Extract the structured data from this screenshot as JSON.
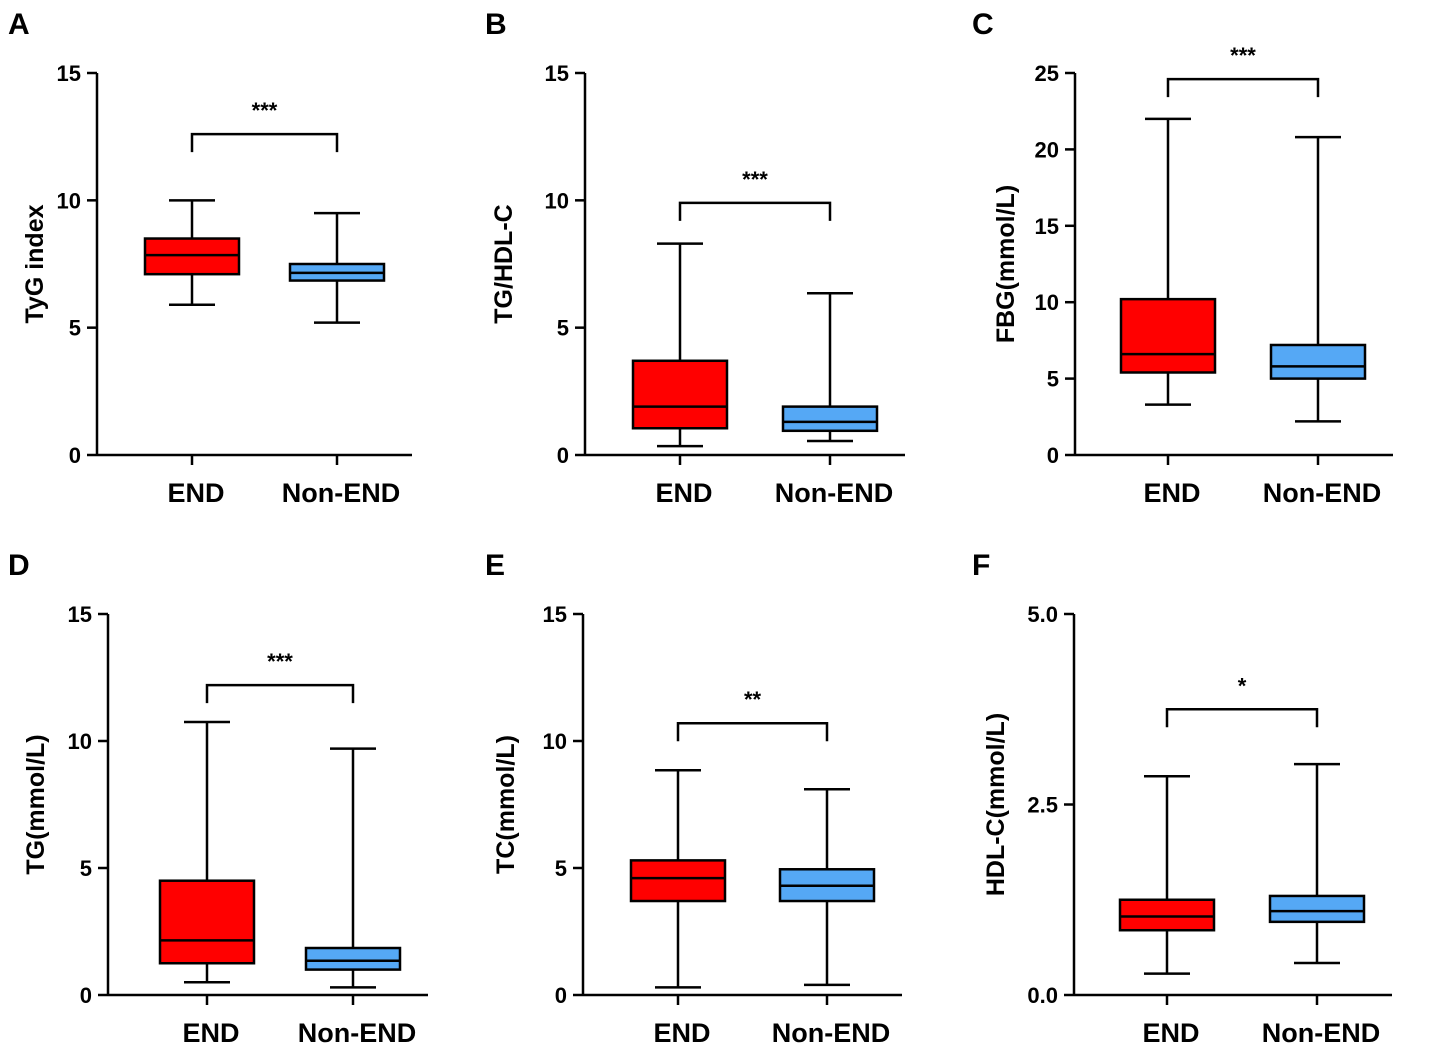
{
  "colors": {
    "END": "#ff0000",
    "Non-END": "#55a8f5"
  },
  "chart_data": [
    {
      "type": "boxplot",
      "panel": "A",
      "ylabel": "TyG index",
      "ylim": [
        0,
        15
      ],
      "yticks": [
        "0",
        "5",
        "10",
        "15"
      ],
      "ytick_values": [
        0,
        5,
        10,
        15
      ],
      "categories": [
        "END",
        "Non-END"
      ],
      "boxes": [
        {
          "name": "END",
          "min": 5.9,
          "q1": 7.1,
          "median": 7.85,
          "q3": 8.5,
          "max": 10.0
        },
        {
          "name": "Non-END",
          "min": 5.2,
          "q1": 6.85,
          "median": 7.15,
          "q3": 7.5,
          "max": 9.5
        }
      ],
      "significance": "***",
      "bracket_y": 12.6
    },
    {
      "type": "boxplot",
      "panel": "B",
      "ylabel": "TG/HDL-C",
      "ylim": [
        0,
        15
      ],
      "yticks": [
        "0",
        "5",
        "10",
        "15"
      ],
      "ytick_values": [
        0,
        5,
        10,
        15
      ],
      "categories": [
        "END",
        "Non-END"
      ],
      "boxes": [
        {
          "name": "END",
          "min": 0.35,
          "q1": 1.05,
          "median": 1.9,
          "q3": 3.7,
          "max": 8.3
        },
        {
          "name": "Non-END",
          "min": 0.55,
          "q1": 0.95,
          "median": 1.3,
          "q3": 1.9,
          "max": 6.35
        }
      ],
      "significance": "***",
      "bracket_y": 9.9
    },
    {
      "type": "boxplot",
      "panel": "C",
      "ylabel": "FBG(mmol/L)",
      "ylim": [
        0,
        25
      ],
      "yticks": [
        "0",
        "5",
        "10",
        "15",
        "20",
        "25"
      ],
      "ytick_values": [
        0,
        5,
        10,
        15,
        20,
        25
      ],
      "categories": [
        "END",
        "Non-END"
      ],
      "boxes": [
        {
          "name": "END",
          "min": 3.3,
          "q1": 5.4,
          "median": 6.6,
          "q3": 10.2,
          "max": 22.0
        },
        {
          "name": "Non-END",
          "min": 2.2,
          "q1": 5.0,
          "median": 5.8,
          "q3": 7.2,
          "max": 20.8
        }
      ],
      "significance": "***",
      "bracket_y": 24.6
    },
    {
      "type": "boxplot",
      "panel": "D",
      "ylabel": "TG(mmol/L)",
      "ylim": [
        0,
        15
      ],
      "yticks": [
        "0",
        "5",
        "10",
        "15"
      ],
      "ytick_values": [
        0,
        5,
        10,
        15
      ],
      "categories": [
        "END",
        "Non-END"
      ],
      "boxes": [
        {
          "name": "END",
          "min": 0.5,
          "q1": 1.25,
          "median": 2.15,
          "q3": 4.5,
          "max": 10.75
        },
        {
          "name": "Non-END",
          "min": 0.3,
          "q1": 1.0,
          "median": 1.35,
          "q3": 1.85,
          "max": 9.7
        }
      ],
      "significance": "***",
      "bracket_y": 12.2
    },
    {
      "type": "boxplot",
      "panel": "E",
      "ylabel": "TC(mmol/L)",
      "ylim": [
        0,
        15
      ],
      "yticks": [
        "0",
        "5",
        "10",
        "15"
      ],
      "ytick_values": [
        0,
        5,
        10,
        15
      ],
      "categories": [
        "END",
        "Non-END"
      ],
      "boxes": [
        {
          "name": "END",
          "min": 0.3,
          "q1": 3.7,
          "median": 4.6,
          "q3": 5.3,
          "max": 8.85
        },
        {
          "name": "Non-END",
          "min": 0.4,
          "q1": 3.7,
          "median": 4.3,
          "q3": 4.95,
          "max": 8.1
        }
      ],
      "significance": "**",
      "bracket_y": 10.7
    },
    {
      "type": "boxplot",
      "panel": "F",
      "ylabel": "HDL-C(mmol/L)",
      "ylim": [
        0,
        5
      ],
      "yticks": [
        "0.0",
        "2.5",
        "5.0"
      ],
      "ytick_values": [
        0,
        2.5,
        5
      ],
      "categories": [
        "END",
        "Non-END"
      ],
      "boxes": [
        {
          "name": "END",
          "min": 0.28,
          "q1": 0.85,
          "median": 1.03,
          "q3": 1.25,
          "max": 2.87
        },
        {
          "name": "Non-END",
          "min": 0.42,
          "q1": 0.96,
          "median": 1.1,
          "q3": 1.3,
          "max": 3.03
        }
      ],
      "significance": "*",
      "bracket_y": 3.75
    }
  ]
}
